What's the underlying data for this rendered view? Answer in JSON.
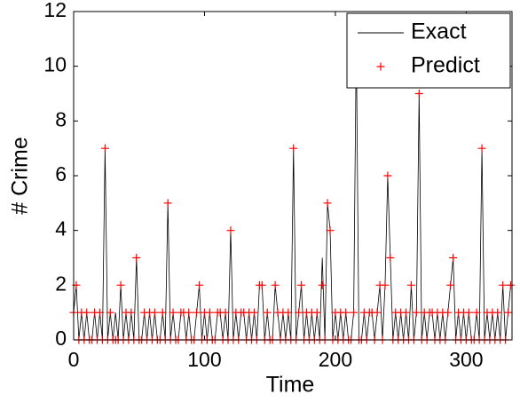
{
  "chart_data": {
    "type": "line",
    "xlabel": "Time",
    "ylabel": "# Crime",
    "x": [
      0,
      2,
      4,
      6,
      8,
      10,
      12,
      14,
      16,
      18,
      20,
      22,
      24,
      26,
      28,
      30,
      32,
      34,
      36,
      38,
      40,
      42,
      44,
      46,
      48,
      50,
      52,
      54,
      56,
      58,
      60,
      62,
      64,
      66,
      68,
      70,
      72,
      74,
      76,
      78,
      80,
      82,
      84,
      86,
      88,
      90,
      92,
      94,
      96,
      98,
      100,
      102,
      104,
      106,
      108,
      110,
      112,
      114,
      116,
      118,
      120,
      122,
      124,
      126,
      128,
      130,
      132,
      134,
      136,
      138,
      140,
      142,
      144,
      146,
      148,
      150,
      152,
      154,
      156,
      158,
      160,
      162,
      164,
      166,
      168,
      170,
      172,
      174,
      176,
      178,
      180,
      182,
      184,
      186,
      188,
      190,
      192,
      194,
      196,
      198,
      200,
      202,
      204,
      206,
      208,
      210,
      212,
      214,
      216,
      218,
      220,
      222,
      224,
      226,
      228,
      230,
      232,
      234,
      236,
      238,
      240,
      242,
      244,
      246,
      248,
      250,
      252,
      254,
      256,
      258,
      260,
      262,
      264,
      266,
      268,
      270,
      272,
      274,
      276,
      278,
      280,
      282,
      284,
      286,
      288,
      290,
      292,
      294,
      296,
      298,
      300,
      302,
      304,
      306,
      308,
      310,
      312,
      314,
      316,
      318,
      320,
      322,
      324,
      326,
      328,
      330,
      332,
      334
    ],
    "series": [
      {
        "name": "Exact",
        "color": "#000000",
        "style": "line",
        "values": [
          1,
          2,
          0,
          1,
          0,
          1,
          0,
          0,
          1,
          0,
          1,
          0,
          7,
          0,
          1,
          0,
          1,
          0,
          2,
          0,
          1,
          0,
          1,
          0,
          3,
          0,
          0,
          1,
          0,
          1,
          0,
          1,
          0,
          0,
          1,
          0,
          5,
          0,
          1,
          0,
          0,
          1,
          1,
          0,
          1,
          0,
          0,
          1,
          2,
          0,
          1,
          0,
          1,
          0,
          0,
          1,
          1,
          0,
          1,
          0,
          4,
          0,
          1,
          0,
          1,
          1,
          0,
          1,
          0,
          1,
          0,
          2,
          2,
          0,
          1,
          0,
          0,
          2,
          1,
          0,
          1,
          0,
          1,
          0,
          7,
          0,
          1,
          2,
          0,
          1,
          0,
          1,
          0,
          1,
          0,
          3,
          0,
          5,
          4,
          0,
          1,
          0,
          1,
          0,
          1,
          0,
          0,
          1,
          11,
          0,
          0,
          1,
          0,
          1,
          1,
          0,
          1,
          2,
          0,
          2,
          6,
          3,
          0,
          1,
          0,
          1,
          0,
          1,
          0,
          2,
          0,
          1,
          9,
          0,
          1,
          0,
          1,
          1,
          0,
          1,
          0,
          1,
          0,
          1,
          2,
          3,
          0,
          1,
          0,
          1,
          0,
          1,
          0,
          0,
          1,
          0,
          7,
          0,
          1,
          0,
          1,
          0,
          1,
          0,
          2,
          0,
          1,
          2
        ]
      },
      {
        "name": "Predict",
        "color": "#ff0000",
        "style": "marker",
        "values": [
          1,
          2,
          0,
          1,
          0,
          1,
          0,
          0,
          1,
          0,
          1,
          0,
          7,
          0,
          1,
          0,
          0,
          0,
          2,
          0,
          1,
          0,
          1,
          0,
          3,
          0,
          0,
          1,
          0,
          1,
          0,
          1,
          0,
          0,
          1,
          0,
          5,
          0,
          1,
          0,
          0,
          1,
          1,
          0,
          1,
          0,
          0,
          1,
          2,
          0,
          1,
          0,
          1,
          0,
          0,
          1,
          1,
          0,
          1,
          0,
          4,
          0,
          1,
          0,
          1,
          1,
          0,
          1,
          0,
          1,
          0,
          2,
          2,
          0,
          1,
          0,
          0,
          2,
          1,
          0,
          1,
          0,
          1,
          0,
          7,
          0,
          1,
          2,
          0,
          1,
          0,
          1,
          0,
          1,
          0,
          2,
          0,
          5,
          4,
          0,
          1,
          0,
          1,
          0,
          1,
          0,
          0,
          1,
          11,
          0,
          0,
          1,
          0,
          1,
          1,
          0,
          1,
          2,
          0,
          2,
          6,
          3,
          0,
          1,
          0,
          1,
          0,
          1,
          0,
          2,
          0,
          1,
          9,
          0,
          1,
          0,
          1,
          1,
          0,
          1,
          0,
          1,
          0,
          1,
          2,
          3,
          0,
          1,
          0,
          1,
          0,
          1,
          0,
          0,
          1,
          0,
          7,
          0,
          1,
          0,
          1,
          0,
          1,
          0,
          2,
          0,
          1,
          2
        ]
      }
    ],
    "xlim": [
      0,
      335
    ],
    "xticks": [
      0,
      100,
      200,
      300
    ],
    "ylim": [
      0,
      12
    ],
    "yticks": [
      0,
      2,
      4,
      6,
      8,
      10,
      12
    ],
    "legend": "northeast"
  }
}
